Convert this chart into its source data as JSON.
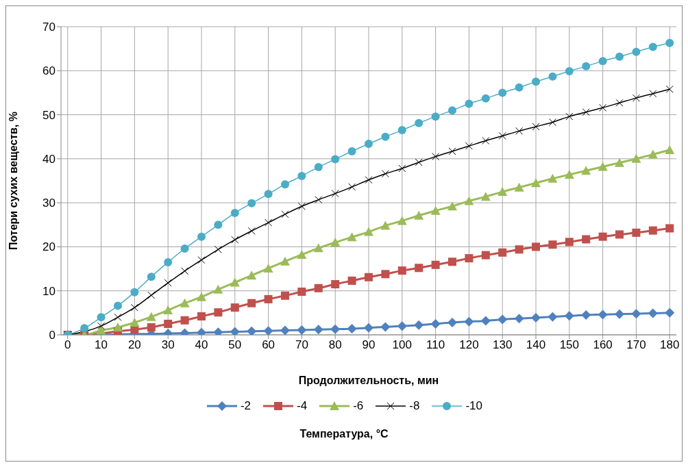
{
  "chart_data": {
    "type": "line",
    "xlabel": "Продолжительность, мин",
    "ylabel": "Потери сухих веществ, %",
    "legend_title": "Температура, °C",
    "x": [
      0,
      5,
      10,
      15,
      20,
      25,
      30,
      35,
      40,
      45,
      50,
      55,
      60,
      65,
      70,
      75,
      80,
      85,
      90,
      95,
      100,
      105,
      110,
      115,
      120,
      125,
      130,
      135,
      140,
      145,
      150,
      155,
      160,
      165,
      170,
      175,
      180
    ],
    "xlim": [
      -2,
      182
    ],
    "xticks": [
      0,
      10,
      20,
      30,
      40,
      50,
      60,
      70,
      80,
      90,
      100,
      110,
      120,
      130,
      140,
      150,
      160,
      170,
      180
    ],
    "ylim": [
      0,
      70
    ],
    "yticks": [
      0,
      10,
      20,
      30,
      40,
      50,
      60,
      70
    ],
    "grid": true,
    "legend": "bottom",
    "series": [
      {
        "name": "-2",
        "color": "#4f81bd",
        "marker": "diamond",
        "values": [
          0,
          0,
          0,
          null,
          0.2,
          0.2,
          0.3,
          0.4,
          0.5,
          0.6,
          0.7,
          0.8,
          0.9,
          1,
          1.1,
          1.2,
          1.3,
          1.4,
          1.6,
          1.8,
          2,
          2.2,
          2.5,
          2.8,
          3,
          3.2,
          3.5,
          3.7,
          3.9,
          4.1,
          4.3,
          4.5,
          4.6,
          4.7,
          4.8,
          4.9,
          5
        ]
      },
      {
        "name": "-4",
        "color": "#c0504d",
        "marker": "square",
        "values": [
          0,
          0,
          null,
          0.8,
          1.2,
          1.7,
          2.5,
          3.3,
          4.2,
          5.1,
          6.2,
          7.2,
          8.1,
          8.9,
          9.8,
          10.6,
          11.5,
          12.3,
          13.1,
          13.8,
          14.6,
          15.2,
          15.9,
          16.6,
          17.4,
          18.1,
          18.7,
          19.4,
          20,
          20.5,
          21.1,
          21.7,
          22.3,
          22.8,
          23.2,
          23.7,
          24.2
        ]
      },
      {
        "name": "-6",
        "color": "#9bbb59",
        "marker": "triangle",
        "values": [
          0,
          0,
          1,
          1.7,
          2.8,
          4.1,
          5.6,
          7.2,
          8.6,
          10.3,
          11.9,
          13.5,
          15.1,
          16.7,
          18.2,
          19.7,
          21,
          22.2,
          23.4,
          24.8,
          25.9,
          27.1,
          28.2,
          29.2,
          30.4,
          31.4,
          32.5,
          33.5,
          34.5,
          35.5,
          36.4,
          37.3,
          38.2,
          39.1,
          40,
          41,
          42
        ]
      },
      {
        "name": "-8",
        "color": "#000000",
        "marker": "cross",
        "values": [
          0,
          null,
          2,
          4,
          6.2,
          9,
          11.8,
          14.5,
          17,
          19.4,
          21.6,
          23.6,
          25.5,
          27.4,
          29.2,
          30.7,
          32.1,
          33.6,
          35.2,
          36.6,
          37.8,
          39.2,
          40.5,
          41.7,
          42.9,
          44.1,
          45.2,
          46.3,
          47.3,
          48.3,
          49.6,
          50.6,
          51.6,
          52.7,
          53.8,
          54.8,
          55.8
        ]
      },
      {
        "name": "-10",
        "color": "#4bacc6",
        "marker": "circle",
        "values": [
          0,
          1.5,
          4,
          6.6,
          9.7,
          13.2,
          16.5,
          19.6,
          22.3,
          25,
          27.7,
          29.9,
          32,
          34.2,
          36.1,
          38.1,
          39.9,
          41.7,
          43.4,
          45,
          46.5,
          48.1,
          49.6,
          51,
          52.5,
          53.7,
          55,
          56.2,
          57.5,
          58.7,
          59.9,
          61,
          62.2,
          63.2,
          64.3,
          65.4,
          66.3
        ]
      }
    ]
  }
}
